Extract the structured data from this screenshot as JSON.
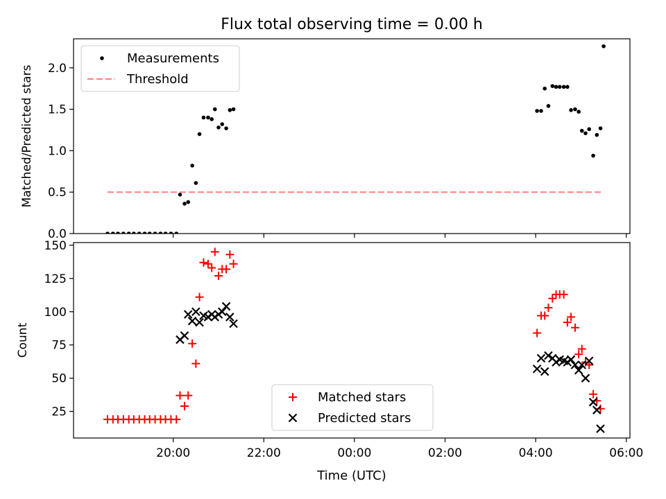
{
  "title": "Flux total observing time = 0.00 h",
  "x_axis": {
    "label": "Time (UTC)",
    "range_hours": [
      17.8,
      30.08
    ],
    "ticks": [
      {
        "hour": 20,
        "label": "20:00"
      },
      {
        "hour": 22,
        "label": "22:00"
      },
      {
        "hour": 24,
        "label": "00:00"
      },
      {
        "hour": 26,
        "label": "02:00"
      },
      {
        "hour": 28,
        "label": "04:00"
      },
      {
        "hour": 30,
        "label": "06:00"
      }
    ]
  },
  "chart_data": [
    {
      "type": "scatter",
      "ylabel": "Matched/Predicted stars",
      "ylim": [
        0,
        2.35
      ],
      "yticks": [
        0,
        0.5,
        1,
        1.5,
        2
      ],
      "ytick_labels": [
        "0.0",
        "0.5",
        "1.0",
        "1.5",
        "2.0"
      ],
      "legend": {
        "position": "upper-left"
      },
      "series": [
        {
          "name": "Measurements",
          "marker": "dot",
          "color": "#000000",
          "points": [
            [
              18.55,
              0
            ],
            [
              18.67,
              0
            ],
            [
              18.78,
              0
            ],
            [
              18.9,
              0
            ],
            [
              19.02,
              0
            ],
            [
              19.13,
              0
            ],
            [
              19.25,
              0
            ],
            [
              19.37,
              0
            ],
            [
              19.48,
              0
            ],
            [
              19.6,
              0
            ],
            [
              19.72,
              0
            ],
            [
              19.83,
              0
            ],
            [
              19.95,
              0
            ],
            [
              20.07,
              0
            ],
            [
              20.15,
              0.47
            ],
            [
              20.25,
              0.36
            ],
            [
              20.33,
              0.38
            ],
            [
              20.42,
              0.82
            ],
            [
              20.5,
              0.61
            ],
            [
              20.58,
              1.2
            ],
            [
              20.67,
              1.4
            ],
            [
              20.77,
              1.4
            ],
            [
              20.85,
              1.38
            ],
            [
              20.92,
              1.5
            ],
            [
              21.0,
              1.28
            ],
            [
              21.08,
              1.32
            ],
            [
              21.17,
              1.27
            ],
            [
              21.25,
              1.49
            ],
            [
              21.33,
              1.5
            ],
            [
              28.03,
              1.48
            ],
            [
              28.12,
              1.48
            ],
            [
              28.2,
              1.75
            ],
            [
              28.28,
              1.54
            ],
            [
              28.37,
              1.78
            ],
            [
              28.45,
              1.77
            ],
            [
              28.53,
              1.77
            ],
            [
              28.62,
              1.77
            ],
            [
              28.7,
              1.77
            ],
            [
              28.78,
              1.49
            ],
            [
              28.87,
              1.5
            ],
            [
              28.95,
              1.47
            ],
            [
              29.02,
              1.24
            ],
            [
              29.1,
              1.21
            ],
            [
              29.18,
              1.26
            ],
            [
              29.27,
              0.94
            ],
            [
              29.35,
              1.19
            ],
            [
              29.43,
              1.27
            ],
            [
              29.5,
              2.26
            ]
          ]
        },
        {
          "name": "Threshold",
          "style": "dashed",
          "color": "#ff7f7f",
          "points": [
            [
              18.55,
              0.5
            ],
            [
              29.5,
              0.5
            ]
          ]
        }
      ]
    },
    {
      "type": "scatter",
      "ylabel": "Count",
      "ylim": [
        5,
        152
      ],
      "yticks": [
        25,
        50,
        75,
        100,
        125,
        150
      ],
      "ytick_labels": [
        "25",
        "50",
        "75",
        "100",
        "125",
        "150"
      ],
      "legend": {
        "position": "lower-center"
      },
      "series": [
        {
          "name": "Matched stars",
          "marker": "plus",
          "color": "#ff0000",
          "points": [
            [
              18.55,
              19
            ],
            [
              18.67,
              19
            ],
            [
              18.78,
              19
            ],
            [
              18.9,
              19
            ],
            [
              19.02,
              19
            ],
            [
              19.13,
              19
            ],
            [
              19.25,
              19
            ],
            [
              19.37,
              19
            ],
            [
              19.48,
              19
            ],
            [
              19.6,
              19
            ],
            [
              19.72,
              19
            ],
            [
              19.83,
              19
            ],
            [
              19.95,
              19
            ],
            [
              20.07,
              19
            ],
            [
              20.15,
              37
            ],
            [
              20.25,
              29
            ],
            [
              20.33,
              37
            ],
            [
              20.42,
              76
            ],
            [
              20.5,
              61
            ],
            [
              20.58,
              111
            ],
            [
              20.67,
              137
            ],
            [
              20.77,
              136
            ],
            [
              20.85,
              133
            ],
            [
              20.92,
              145
            ],
            [
              21.0,
              127
            ],
            [
              21.08,
              132
            ],
            [
              21.17,
              132
            ],
            [
              21.25,
              143
            ],
            [
              21.33,
              136
            ],
            [
              28.03,
              84
            ],
            [
              28.12,
              97
            ],
            [
              28.2,
              97
            ],
            [
              28.28,
              103
            ],
            [
              28.37,
              110
            ],
            [
              28.45,
              113
            ],
            [
              28.53,
              113
            ],
            [
              28.62,
              113
            ],
            [
              28.7,
              92
            ],
            [
              28.78,
              96
            ],
            [
              28.87,
              88
            ],
            [
              28.95,
              68
            ],
            [
              29.02,
              72
            ],
            [
              29.1,
              62
            ],
            [
              29.18,
              60
            ],
            [
              29.27,
              38
            ],
            [
              29.35,
              33
            ],
            [
              29.43,
              27
            ]
          ]
        },
        {
          "name": "Predicted stars",
          "marker": "x",
          "color": "#000000",
          "points": [
            [
              20.15,
              79
            ],
            [
              20.25,
              82
            ],
            [
              20.33,
              98
            ],
            [
              20.42,
              93
            ],
            [
              20.5,
              100
            ],
            [
              20.58,
              92
            ],
            [
              20.67,
              97
            ],
            [
              20.77,
              96
            ],
            [
              20.85,
              98
            ],
            [
              20.92,
              96
            ],
            [
              21.0,
              98
            ],
            [
              21.08,
              100
            ],
            [
              21.17,
              104
            ],
            [
              21.25,
              96
            ],
            [
              21.33,
              91
            ],
            [
              28.03,
              57
            ],
            [
              28.12,
              65
            ],
            [
              28.2,
              55
            ],
            [
              28.28,
              67
            ],
            [
              28.37,
              65
            ],
            [
              28.45,
              62
            ],
            [
              28.53,
              64
            ],
            [
              28.62,
              63
            ],
            [
              28.7,
              62
            ],
            [
              28.78,
              64
            ],
            [
              28.87,
              60
            ],
            [
              28.95,
              56
            ],
            [
              29.02,
              60
            ],
            [
              29.1,
              50
            ],
            [
              29.18,
              63
            ],
            [
              29.27,
              32
            ],
            [
              29.35,
              26
            ],
            [
              29.43,
              12
            ]
          ]
        }
      ]
    }
  ]
}
